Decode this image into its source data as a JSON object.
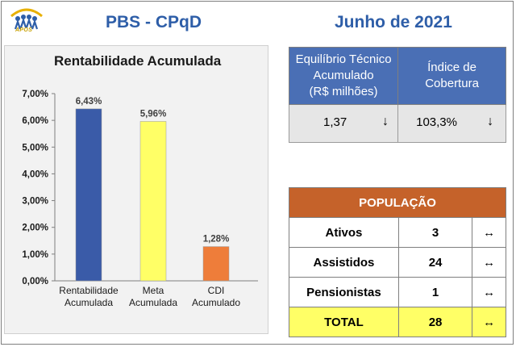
{
  "logo": {
    "icon": "people-arch-logo",
    "brand_text": "APOS"
  },
  "header": {
    "left_title": "PBS - CPqD",
    "right_title": "Junho de 2021"
  },
  "chart_data": {
    "type": "bar",
    "title": "Rentabilidade Acumulada",
    "categories": [
      [
        "Rentabilidade",
        "Acumulada"
      ],
      [
        "Meta",
        "Acumulada"
      ],
      [
        "CDI",
        "Acumulado"
      ]
    ],
    "values": [
      6.43,
      5.96,
      1.28
    ],
    "value_labels": [
      "6,43%",
      "5,96%",
      "1,28%"
    ],
    "colors": [
      "#3a5ba8",
      "#ffff66",
      "#ee7d3a"
    ],
    "ylim": [
      0,
      7
    ],
    "ytick_labels": [
      "0,00%",
      "1,00%",
      "2,00%",
      "3,00%",
      "4,00%",
      "5,00%",
      "6,00%",
      "7,00%"
    ],
    "grid": false,
    "legend": "none"
  },
  "balance_table": {
    "headers": [
      "Equilíbrio Técnico Acumulado (R$ milhões)",
      "Índice de Cobertura"
    ],
    "header_lines": [
      [
        "Equilíbrio Técnico",
        "Acumulado",
        "(R$ milhões)"
      ],
      [
        "Índice de",
        "Cobertura"
      ]
    ],
    "values": [
      "1,37",
      "103,3%"
    ],
    "trend_arrows": [
      "↓",
      "↓"
    ]
  },
  "population": {
    "title": "POPULAÇÃO",
    "rows": [
      {
        "label": "Ativos",
        "value": "3",
        "trend": "↔"
      },
      {
        "label": "Assistidos",
        "value": "24",
        "trend": "↔"
      },
      {
        "label": "Pensionistas",
        "value": "1",
        "trend": "↔"
      }
    ],
    "total": {
      "label": "TOTAL",
      "value": "28",
      "trend": "↔"
    }
  }
}
